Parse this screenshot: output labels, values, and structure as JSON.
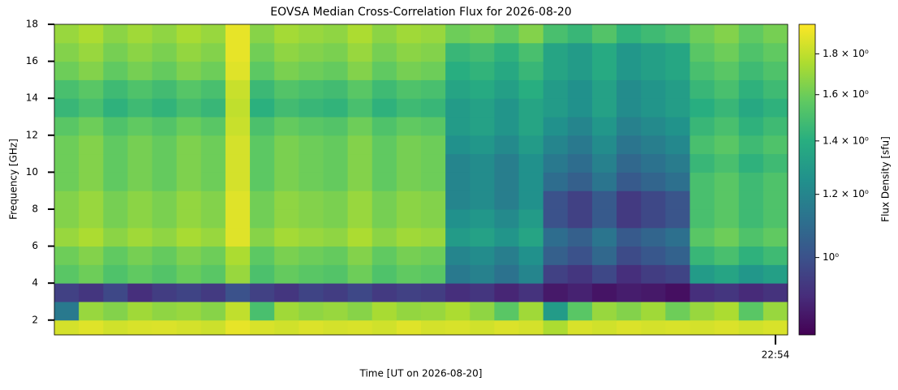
{
  "chart_data": {
    "type": "heatmap",
    "title": "EOVSA Median Cross-Correlation Flux for 2026-08-20",
    "xlabel": "Time [UT on 2026-08-20]",
    "ylabel": "Frequency [GHz]",
    "colorbar_label": "Flux Density [sfu]",
    "colormap": "viridis",
    "color_scale": "log",
    "categories": [
      null,
      null,
      null,
      null,
      null,
      null,
      null,
      null,
      null,
      null,
      null,
      null,
      null,
      null,
      null,
      null,
      null,
      null,
      null,
      null,
      null,
      null,
      null,
      null,
      null,
      null,
      null,
      null,
      null,
      "22:54"
    ],
    "y_edges": [
      1.2,
      2,
      3,
      4,
      5,
      6,
      7,
      8,
      9,
      10,
      11,
      12,
      13,
      14,
      15,
      16,
      17,
      18
    ],
    "ylim": [
      1.2,
      18
    ],
    "yticks": [
      2,
      4,
      6,
      8,
      10,
      12,
      14,
      16,
      18
    ],
    "clim": [
      0.8,
      1.96
    ],
    "cticks": [
      {
        "value": 1,
        "label": "10⁰"
      },
      {
        "value": 1.2,
        "label": "1.2 × 10⁰"
      },
      {
        "value": 1.4,
        "label": "1.4 × 10⁰"
      },
      {
        "value": 1.6,
        "label": "1.6 × 10⁰"
      },
      {
        "value": 1.8,
        "label": "1.8 × 10⁰"
      }
    ],
    "z": [
      [
        1.85,
        1.88,
        1.84,
        1.86,
        1.87,
        1.85,
        1.83,
        1.9,
        1.86,
        1.84,
        1.87,
        1.85,
        1.86,
        1.84,
        1.88,
        1.85,
        1.86,
        1.84,
        1.87,
        1.85,
        1.75,
        1.86,
        1.84,
        1.87,
        1.85,
        1.86,
        1.85,
        1.87,
        1.84,
        1.86
      ],
      [
        1.15,
        1.7,
        1.65,
        1.72,
        1.68,
        1.7,
        1.66,
        1.8,
        1.5,
        1.72,
        1.68,
        1.7,
        1.66,
        1.74,
        1.69,
        1.7,
        1.75,
        1.68,
        1.55,
        1.72,
        1.3,
        1.55,
        1.7,
        1.65,
        1.72,
        1.6,
        1.7,
        1.75,
        1.55,
        1.7
      ],
      [
        0.95,
        0.92,
        0.97,
        0.9,
        0.94,
        0.96,
        0.93,
        1.0,
        0.95,
        0.92,
        0.96,
        0.94,
        0.97,
        0.93,
        0.95,
        0.94,
        0.9,
        0.92,
        0.88,
        0.91,
        0.85,
        0.87,
        0.84,
        0.86,
        0.85,
        0.83,
        0.9,
        0.92,
        0.89,
        0.91
      ],
      [
        1.55,
        1.6,
        1.52,
        1.57,
        1.53,
        1.59,
        1.55,
        1.7,
        1.51,
        1.58,
        1.55,
        1.53,
        1.6,
        1.52,
        1.57,
        1.55,
        1.15,
        1.18,
        1.12,
        1.2,
        0.95,
        0.92,
        0.97,
        0.9,
        0.94,
        0.96,
        1.3,
        1.35,
        1.28,
        1.32
      ],
      [
        1.6,
        1.65,
        1.57,
        1.62,
        1.58,
        1.64,
        1.6,
        1.75,
        1.56,
        1.63,
        1.6,
        1.58,
        1.65,
        1.57,
        1.62,
        1.6,
        1.2,
        1.23,
        1.17,
        1.25,
        1.05,
        1.0,
        1.08,
        0.98,
        1.02,
        1.06,
        1.45,
        1.5,
        1.42,
        1.47
      ],
      [
        1.7,
        1.75,
        1.67,
        1.72,
        1.68,
        1.74,
        1.7,
        1.88,
        1.66,
        1.73,
        1.7,
        1.68,
        1.75,
        1.67,
        1.72,
        1.7,
        1.3,
        1.33,
        1.27,
        1.35,
        1.1,
        1.05,
        1.13,
        1.03,
        1.07,
        1.11,
        1.55,
        1.6,
        1.52,
        1.57
      ],
      [
        1.65,
        1.7,
        1.62,
        1.67,
        1.63,
        1.69,
        1.65,
        1.88,
        1.61,
        1.68,
        1.65,
        1.63,
        1.7,
        1.62,
        1.67,
        1.65,
        1.25,
        1.28,
        1.22,
        1.3,
        1.0,
        0.95,
        1.03,
        0.93,
        0.97,
        1.01,
        1.5,
        1.55,
        1.47,
        1.52
      ],
      [
        1.65,
        1.7,
        1.62,
        1.67,
        1.63,
        1.69,
        1.65,
        1.88,
        1.61,
        1.68,
        1.65,
        1.63,
        1.7,
        1.62,
        1.67,
        1.65,
        1.2,
        1.23,
        1.17,
        1.25,
        1.0,
        0.95,
        1.03,
        0.93,
        0.97,
        1.01,
        1.5,
        1.55,
        1.47,
        1.52
      ],
      [
        1.6,
        1.65,
        1.57,
        1.62,
        1.58,
        1.64,
        1.6,
        1.85,
        1.56,
        1.63,
        1.6,
        1.58,
        1.65,
        1.57,
        1.62,
        1.6,
        1.2,
        1.23,
        1.17,
        1.25,
        1.1,
        1.05,
        1.13,
        1.03,
        1.07,
        1.11,
        1.5,
        1.55,
        1.47,
        1.52
      ],
      [
        1.6,
        1.65,
        1.57,
        1.62,
        1.58,
        1.64,
        1.6,
        1.85,
        1.56,
        1.63,
        1.6,
        1.58,
        1.65,
        1.57,
        1.62,
        1.6,
        1.2,
        1.23,
        1.17,
        1.25,
        1.15,
        1.1,
        1.18,
        1.08,
        1.12,
        1.16,
        1.45,
        1.5,
        1.42,
        1.47
      ],
      [
        1.6,
        1.65,
        1.57,
        1.62,
        1.58,
        1.64,
        1.6,
        1.85,
        1.56,
        1.63,
        1.6,
        1.58,
        1.65,
        1.57,
        1.62,
        1.6,
        1.25,
        1.28,
        1.22,
        1.3,
        1.2,
        1.15,
        1.23,
        1.13,
        1.17,
        1.21,
        1.5,
        1.55,
        1.47,
        1.52
      ],
      [
        1.55,
        1.6,
        1.52,
        1.57,
        1.53,
        1.59,
        1.55,
        1.82,
        1.51,
        1.58,
        1.55,
        1.53,
        1.6,
        1.52,
        1.57,
        1.55,
        1.3,
        1.33,
        1.27,
        1.35,
        1.25,
        1.2,
        1.28,
        1.18,
        1.22,
        1.26,
        1.45,
        1.5,
        1.42,
        1.47
      ],
      [
        1.45,
        1.5,
        1.42,
        1.47,
        1.43,
        1.49,
        1.45,
        1.8,
        1.41,
        1.48,
        1.45,
        1.43,
        1.5,
        1.42,
        1.47,
        1.45,
        1.3,
        1.33,
        1.27,
        1.35,
        1.3,
        1.25,
        1.33,
        1.23,
        1.27,
        1.31,
        1.4,
        1.45,
        1.37,
        1.42
      ],
      [
        1.5,
        1.55,
        1.47,
        1.52,
        1.48,
        1.54,
        1.5,
        1.82,
        1.46,
        1.53,
        1.5,
        1.48,
        1.55,
        1.47,
        1.52,
        1.5,
        1.35,
        1.38,
        1.32,
        1.4,
        1.3,
        1.25,
        1.33,
        1.23,
        1.27,
        1.31,
        1.45,
        1.5,
        1.42,
        1.47
      ],
      [
        1.6,
        1.65,
        1.57,
        1.62,
        1.58,
        1.64,
        1.6,
        1.88,
        1.56,
        1.63,
        1.6,
        1.58,
        1.65,
        1.57,
        1.62,
        1.6,
        1.4,
        1.43,
        1.37,
        1.45,
        1.35,
        1.3,
        1.38,
        1.28,
        1.32,
        1.36,
        1.5,
        1.55,
        1.47,
        1.52
      ],
      [
        1.65,
        1.7,
        1.62,
        1.67,
        1.63,
        1.69,
        1.65,
        1.9,
        1.61,
        1.68,
        1.65,
        1.63,
        1.7,
        1.62,
        1.67,
        1.65,
        1.45,
        1.48,
        1.42,
        1.5,
        1.35,
        1.3,
        1.38,
        1.28,
        1.32,
        1.36,
        1.55,
        1.6,
        1.52,
        1.57
      ],
      [
        1.7,
        1.75,
        1.67,
        1.72,
        1.68,
        1.74,
        1.7,
        1.9,
        1.66,
        1.73,
        1.7,
        1.68,
        1.75,
        1.67,
        1.72,
        1.7,
        1.6,
        1.63,
        1.57,
        1.65,
        1.5,
        1.45,
        1.53,
        1.43,
        1.47,
        1.51,
        1.6,
        1.65,
        1.57,
        1.62
      ]
    ]
  }
}
